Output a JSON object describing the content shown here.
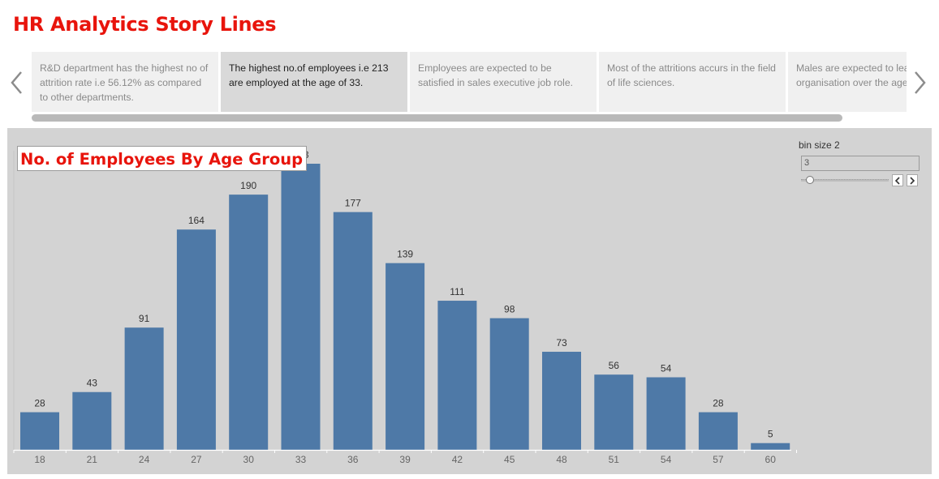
{
  "story": {
    "title": "HR Analytics Story Lines",
    "points": [
      {
        "text": "R&D department has the highest no of attrition rate i.e 56.12% as compared to other departments.",
        "active": false
      },
      {
        "text": "The highest no.of employees i.e 213 are employed at the age of 33.",
        "active": true
      },
      {
        "text": "Employees are expected to be satisfied in sales executive job role.",
        "active": false
      },
      {
        "text": "Most of the attritions accurs in the field of life sciences.",
        "active": false
      },
      {
        "text": "Males are expected to leave the organisation over the age",
        "active": false
      }
    ]
  },
  "parameter": {
    "title": "bin size 2",
    "value": "3",
    "slider_fraction": 0.1
  },
  "colors": {
    "title_red": "#e8140c",
    "bar": "#4e79a7",
    "panel_bg": "#d3d3d3"
  },
  "icons": {
    "prev": "chevron-left-icon",
    "next": "chevron-right-icon"
  },
  "chart_data": {
    "type": "bar",
    "title": "No. of Employees By Age Group",
    "xlabel": "",
    "ylabel": "",
    "categories": [
      "18",
      "21",
      "24",
      "27",
      "30",
      "33",
      "36",
      "39",
      "42",
      "45",
      "48",
      "51",
      "54",
      "57",
      "60"
    ],
    "values": [
      28,
      43,
      91,
      164,
      190,
      213,
      177,
      139,
      111,
      98,
      73,
      56,
      54,
      28,
      5
    ],
    "ylim": [
      0,
      213
    ],
    "data_labels": true,
    "grid": false
  }
}
